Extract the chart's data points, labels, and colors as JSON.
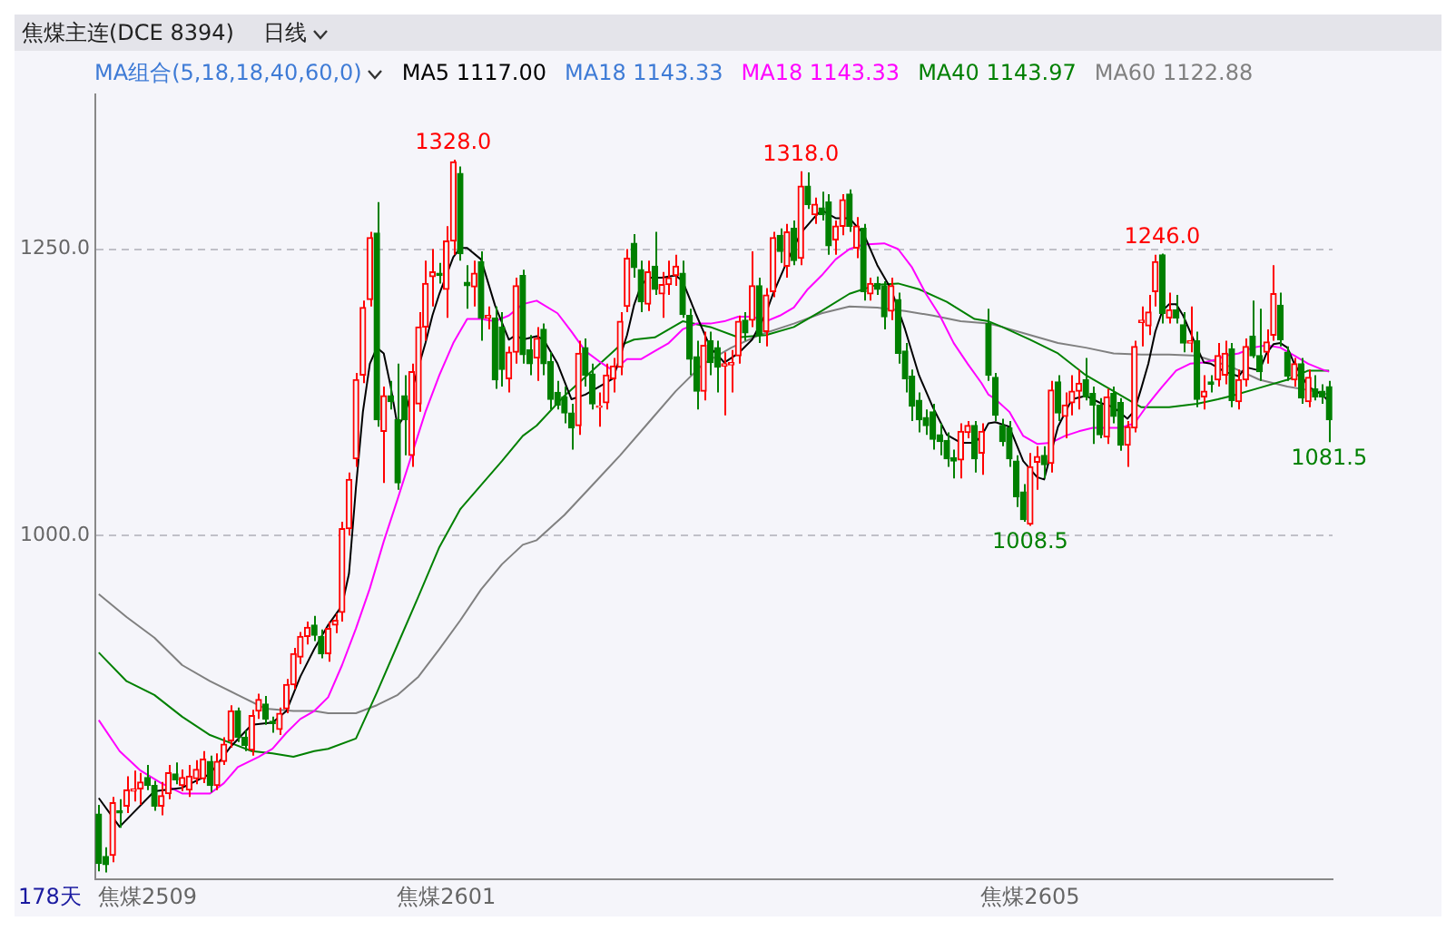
{
  "chart_data": {
    "type": "candlestick",
    "title": "焦煤主连(DCE 8394)",
    "subtitle": "日线",
    "categories": [
      null,
      null,
      null,
      null,
      null,
      null,
      null,
      "焦煤2509",
      null,
      null,
      null,
      null,
      null,
      null,
      null,
      null,
      null,
      null,
      null,
      null,
      null,
      null,
      null,
      null,
      null,
      null,
      null,
      null,
      null,
      null,
      null,
      null,
      null,
      null,
      null,
      null,
      null,
      null,
      null,
      null,
      null,
      null,
      null,
      null,
      null,
      null,
      null,
      null,
      null,
      null,
      "焦煤2601",
      null,
      null,
      null,
      null,
      null,
      null,
      null,
      null,
      null,
      null,
      null,
      null,
      null,
      null,
      null,
      null,
      null,
      null,
      null,
      null,
      null,
      null,
      null,
      null,
      null,
      null,
      null,
      null,
      null,
      null,
      null,
      null,
      null,
      null,
      null,
      null,
      null,
      null,
      null,
      null,
      null,
      null,
      null,
      null,
      null,
      null,
      null,
      null,
      null,
      null,
      null,
      null,
      null,
      null,
      null,
      null,
      null,
      null,
      null,
      null,
      null,
      null,
      null,
      null,
      null,
      null,
      null,
      null,
      null,
      null,
      null,
      null,
      null,
      null,
      null,
      null,
      null,
      null,
      null,
      null,
      null,
      null,
      null,
      "焦煤2605",
      null,
      null,
      null,
      null,
      null,
      null,
      null,
      null,
      null,
      null,
      null,
      null,
      null,
      null,
      null,
      null,
      null,
      null,
      null,
      null,
      null,
      null,
      null,
      null,
      null,
      null,
      null,
      null,
      null,
      null,
      null,
      null,
      null,
      null,
      null,
      null,
      null,
      null,
      null,
      null,
      null,
      null,
      null
    ],
    "ohlc": [
      [
        757,
        765,
        707,
        714
      ],
      [
        720,
        728,
        706,
        713
      ],
      [
        721,
        772,
        715,
        767
      ],
      [
        760,
        770,
        745,
        758
      ],
      [
        764,
        790,
        758,
        778
      ],
      [
        777,
        795,
        768,
        779
      ],
      [
        779,
        793,
        765,
        785
      ],
      [
        789,
        800,
        778,
        782
      ],
      [
        782,
        786,
        760,
        764
      ],
      [
        764,
        785,
        756,
        773
      ],
      [
        775,
        800,
        770,
        793
      ],
      [
        792,
        802,
        783,
        787
      ],
      [
        782,
        796,
        777,
        789
      ],
      [
        778,
        800,
        772,
        790
      ],
      [
        788,
        804,
        783,
        796
      ],
      [
        788,
        812,
        784,
        805
      ],
      [
        803,
        808,
        776,
        782
      ],
      [
        782,
        810,
        778,
        803
      ],
      [
        803,
        824,
        800,
        818
      ],
      [
        821,
        852,
        815,
        847
      ],
      [
        847,
        850,
        820,
        824
      ],
      [
        824,
        830,
        812,
        817
      ],
      [
        813,
        848,
        808,
        843
      ],
      [
        847,
        862,
        840,
        857
      ],
      [
        853,
        860,
        835,
        840
      ],
      [
        838,
        842,
        828,
        836
      ],
      [
        831,
        850,
        826,
        845
      ],
      [
        849,
        875,
        845,
        870
      ],
      [
        870,
        902,
        866,
        897
      ],
      [
        894,
        916,
        888,
        912
      ],
      [
        912,
        925,
        905,
        920
      ],
      [
        922,
        930,
        908,
        913
      ],
      [
        912,
        918,
        893,
        897
      ],
      [
        897,
        925,
        890,
        919
      ],
      [
        922,
        932,
        915,
        926
      ],
      [
        933,
        1012,
        925,
        1006
      ],
      [
        1006,
        1055,
        1000,
        1049
      ],
      [
        1067,
        1142,
        1060,
        1136
      ],
      [
        1140,
        1205,
        1133,
        1199
      ],
      [
        1206,
        1265,
        1200,
        1260
      ],
      [
        1264,
        1291,
        1095,
        1101
      ],
      [
        1091,
        1130,
        1046,
        1122
      ],
      [
        1122,
        1135,
        1110,
        1117
      ],
      [
        1101,
        1150,
        1040,
        1046
      ],
      [
        1122,
        1140,
        1070,
        1101
      ],
      [
        1070,
        1150,
        1060,
        1143
      ],
      [
        1115,
        1195,
        1108,
        1182
      ],
      [
        1182,
        1240,
        1170,
        1220
      ],
      [
        1226,
        1250,
        1200,
        1230
      ],
      [
        1229,
        1238,
        1220,
        1227
      ],
      [
        1215,
        1270,
        1190,
        1257
      ],
      [
        1257,
        1328,
        1245,
        1326
      ],
      [
        1316,
        1322,
        1240,
        1246
      ],
      [
        1221,
        1236,
        1198,
        1218
      ],
      [
        1217,
        1240,
        1200,
        1229
      ],
      [
        1239,
        1248,
        1170,
        1190
      ],
      [
        1190,
        1200,
        1180,
        1192
      ],
      [
        1190,
        1200,
        1128,
        1136
      ],
      [
        1182,
        1195,
        1130,
        1145
      ],
      [
        1137,
        1165,
        1125,
        1160
      ],
      [
        1160,
        1225,
        1150,
        1218
      ],
      [
        1227,
        1232,
        1150,
        1158
      ],
      [
        1162,
        1175,
        1140,
        1150
      ],
      [
        1155,
        1182,
        1135,
        1172
      ],
      [
        1180,
        1185,
        1140,
        1150
      ],
      [
        1152,
        1160,
        1110,
        1119
      ],
      [
        1125,
        1135,
        1110,
        1114
      ],
      [
        1121,
        1130,
        1098,
        1107
      ],
      [
        1107,
        1115,
        1075,
        1094
      ],
      [
        1096,
        1170,
        1088,
        1159
      ],
      [
        1164,
        1172,
        1130,
        1140
      ],
      [
        1141,
        1150,
        1110,
        1115
      ],
      [
        1112,
        1125,
        1095,
        1113
      ],
      [
        1116,
        1150,
        1110,
        1140
      ],
      [
        1137,
        1155,
        1125,
        1148
      ],
      [
        1147,
        1195,
        1140,
        1187
      ],
      [
        1200,
        1250,
        1195,
        1242
      ],
      [
        1255,
        1263,
        1225,
        1234
      ],
      [
        1232,
        1240,
        1195,
        1204
      ],
      [
        1202,
        1240,
        1196,
        1230
      ],
      [
        1235,
        1265,
        1210,
        1215
      ],
      [
        1211,
        1230,
        1190,
        1219
      ],
      [
        1219,
        1240,
        1210,
        1225
      ],
      [
        1227,
        1245,
        1218,
        1235
      ],
      [
        1229,
        1240,
        1190,
        1193
      ],
      [
        1192,
        1198,
        1140,
        1154
      ],
      [
        1156,
        1170,
        1110,
        1126
      ],
      [
        1126,
        1178,
        1118,
        1166
      ],
      [
        1170,
        1178,
        1140,
        1151
      ],
      [
        1164,
        1170,
        1125,
        1147
      ],
      [
        1148,
        1160,
        1105,
        1150
      ],
      [
        1149,
        1162,
        1125,
        1151
      ],
      [
        1157,
        1192,
        1150,
        1187
      ],
      [
        1188,
        1195,
        1170,
        1177
      ],
      [
        1188,
        1248,
        1182,
        1218
      ],
      [
        1218,
        1225,
        1168,
        1175
      ],
      [
        1178,
        1216,
        1165,
        1210
      ],
      [
        1213,
        1265,
        1208,
        1260
      ],
      [
        1262,
        1268,
        1238,
        1248
      ],
      [
        1235,
        1272,
        1225,
        1265
      ],
      [
        1268,
        1275,
        1236,
        1240
      ],
      [
        1242,
        1318,
        1236,
        1305
      ],
      [
        1305,
        1317,
        1285,
        1289
      ],
      [
        1280,
        1295,
        1272,
        1289
      ],
      [
        1286,
        1300,
        1275,
        1280
      ],
      [
        1291,
        1298,
        1245,
        1253
      ],
      [
        1258,
        1275,
        1245,
        1270
      ],
      [
        1270,
        1298,
        1262,
        1293
      ],
      [
        1298,
        1302,
        1265,
        1270
      ],
      [
        1251,
        1278,
        1242,
        1270
      ],
      [
        1268,
        1272,
        1205,
        1213
      ],
      [
        1211,
        1225,
        1205,
        1220
      ],
      [
        1220,
        1226,
        1210,
        1215
      ],
      [
        1218,
        1222,
        1180,
        1191
      ],
      [
        1196,
        1225,
        1188,
        1218
      ],
      [
        1206,
        1212,
        1150,
        1159
      ],
      [
        1161,
        1168,
        1125,
        1137
      ],
      [
        1139,
        1145,
        1100,
        1113
      ],
      [
        1118,
        1125,
        1090,
        1101
      ],
      [
        1103,
        1110,
        1088,
        1096
      ],
      [
        1108,
        1115,
        1075,
        1084
      ],
      [
        1088,
        1098,
        1070,
        1082
      ],
      [
        1083,
        1090,
        1060,
        1067
      ],
      [
        1068,
        1075,
        1050,
        1065
      ],
      [
        1066,
        1098,
        1050,
        1091
      ],
      [
        1090,
        1100,
        1085,
        1096
      ],
      [
        1096,
        1100,
        1055,
        1067
      ],
      [
        1072,
        1098,
        1053,
        1091
      ],
      [
        1185,
        1198,
        1135,
        1140
      ],
      [
        1138,
        1142,
        1100,
        1105
      ],
      [
        1096,
        1102,
        1078,
        1082
      ],
      [
        1094,
        1100,
        1060,
        1067
      ],
      [
        1065,
        1070,
        1025,
        1034
      ],
      [
        1038,
        1045,
        1012,
        1014
      ],
      [
        1010,
        1072,
        1008.5,
        1060
      ],
      [
        1064,
        1078,
        1040,
        1069
      ],
      [
        1070,
        1078,
        1050,
        1062
      ],
      [
        1063,
        1135,
        1055,
        1127
      ],
      [
        1134,
        1140,
        1100,
        1107
      ],
      [
        1104,
        1125,
        1085,
        1114
      ],
      [
        1116,
        1140,
        1105,
        1126
      ],
      [
        1126,
        1145,
        1110,
        1133
      ],
      [
        1136,
        1155,
        1118,
        1121
      ],
      [
        1124,
        1130,
        1080,
        1114
      ],
      [
        1114,
        1120,
        1085,
        1088
      ],
      [
        1086,
        1128,
        1080,
        1121
      ],
      [
        1124,
        1130,
        1098,
        1104
      ],
      [
        1116,
        1120,
        1074,
        1079
      ],
      [
        1079,
        1100,
        1060,
        1095
      ],
      [
        1094,
        1170,
        1090,
        1165
      ],
      [
        1186,
        1200,
        1165,
        1188
      ],
      [
        1183,
        1210,
        1175,
        1195
      ],
      [
        1213,
        1245,
        1200,
        1239
      ],
      [
        1245,
        1246,
        1185,
        1194
      ],
      [
        1190,
        1212,
        1185,
        1197
      ],
      [
        1197,
        1210,
        1185,
        1190
      ],
      [
        1184,
        1195,
        1160,
        1168
      ],
      [
        1168,
        1200,
        1160,
        1170
      ],
      [
        1170,
        1178,
        1112,
        1119
      ],
      [
        1121,
        1140,
        1110,
        1126
      ],
      [
        1134,
        1140,
        1125,
        1132
      ],
      [
        1136,
        1168,
        1130,
        1157
      ],
      [
        1140,
        1170,
        1132,
        1159
      ],
      [
        1163,
        1168,
        1112,
        1118
      ],
      [
        1117,
        1145,
        1110,
        1136
      ],
      [
        1136,
        1172,
        1130,
        1165
      ],
      [
        1174,
        1205,
        1155,
        1157
      ],
      [
        1157,
        1198,
        1135,
        1143
      ],
      [
        1160,
        1180,
        1150,
        1169
      ],
      [
        1175,
        1236,
        1170,
        1211
      ],
      [
        1201,
        1212,
        1165,
        1171
      ],
      [
        1160,
        1165,
        1135,
        1139
      ],
      [
        1136,
        1155,
        1130,
        1150
      ],
      [
        1150,
        1155,
        1115,
        1120
      ],
      [
        1117,
        1145,
        1112,
        1138
      ],
      [
        1128,
        1140,
        1118,
        1121
      ],
      [
        1126,
        1132,
        1115,
        1121
      ],
      [
        1130,
        1135,
        1081.5,
        1101
      ]
    ],
    "series": [
      {
        "name": "MA5 1117.00",
        "type": "line",
        "color": "#000000",
        "values": [
          771,
          null,
          null,
          746,
          null,
          null,
          null,
          null,
          777,
          null,
          null,
          null,
          780,
          null,
          null,
          null,
          792,
          null,
          null,
          816,
          null,
          null,
          835,
          null,
          null,
          837,
          null,
          847,
          null,
          877,
          null,
          901,
          null,
          922,
          null,
          939,
          967,
          1042,
          1108,
          1150,
          1164,
          1159,
          1130,
          1095,
          1105,
          null,
          null,
          1168,
          1192,
          1211,
          null,
          1243,
          1251,
          1251,
          null,
          1241,
          null,
          1201,
          null,
          1171,
          1175,
          1171,
          null,
          1174,
          1171,
          null,
          1150,
          null,
          1119,
          null,
          1123,
          null,
          1130,
          null,
          1137,
          null,
          1175,
          1201,
          1218,
          1225,
          null,
          1225,
          null,
          1227,
          1222,
          null,
          1192,
          null,
          1164,
          null,
          1151,
          null,
          1159,
          null,
          1171,
          null,
          1194,
          1211,
          null,
          1239,
          null,
          1264,
          null,
          1278,
          1284,
          null,
          1277,
          null,
          1277,
          1270,
          1264,
          null,
          1236,
          null,
          1215,
          null,
          1180,
          null,
          1140,
          null,
          1112,
          null,
          1088,
          null,
          1081,
          null,
          1081,
          1087,
          1098,
          1099,
          null,
          1095,
          null,
          1065,
          null,
          1051,
          1049,
          null,
          1095,
          null,
          1119,
          null,
          1122,
          null,
          1116,
          null,
          1112,
          null,
          1102,
          1109,
          1129,
          1150,
          1178,
          1196,
          1202,
          1202,
          1192,
          1178,
          1164,
          1151,
          1150,
          null,
          1143,
          null,
          1139,
          1147,
          null,
          1144,
          1159,
          1167,
          1168,
          1164,
          1150,
          null,
          1130,
          null,
          1123,
          1117
        ]
      },
      {
        "name": "MA18 1143.33",
        "type": "line",
        "color": "#ff00ff",
        "values": [
          839,
          null,
          null,
          812,
          null,
          null,
          795,
          null,
          null,
          784,
          null,
          null,
          775,
          null,
          null,
          null,
          775,
          null,
          784,
          null,
          798,
          null,
          null,
          807,
          null,
          814,
          null,
          828,
          null,
          840,
          null,
          847,
          null,
          859,
          null,
          887,
          null,
          919,
          null,
          954,
          null,
          995,
          null,
          1032,
          null,
          1070,
          null,
          1108,
          null,
          1140,
          null,
          1168,
          null,
          1189,
          null,
          1189,
          null,
          1187,
          null,
          1192,
          null,
          1202,
          null,
          1205,
          null,
          null,
          1194,
          null,
          1178,
          null,
          1161,
          null,
          1152,
          null,
          1144,
          null,
          1154,
          null,
          1154,
          null,
          1161,
          null,
          1168,
          null,
          1180,
          null,
          1185,
          null,
          1185,
          null,
          1187,
          null,
          1191,
          null,
          1191,
          null,
          1187,
          null,
          1192,
          null,
          1199,
          null,
          1215,
          null,
          1227,
          null,
          1241,
          null,
          1250,
          null,
          1254,
          null,
          null,
          1255,
          null,
          1250,
          null,
          1234,
          null,
          1211,
          null,
          1192,
          null,
          1168,
          null,
          1150,
          null,
          1133,
          1123,
          1119,
          null,
          1108,
          null,
          1087,
          null,
          1080,
          null,
          1081,
          null,
          1087,
          null,
          1091,
          null,
          1094,
          null,
          1094,
          null,
          1094,
          null,
          1098,
          null,
          1115,
          null,
          1130,
          null,
          1144,
          null,
          1150,
          null,
          1151,
          null,
          1154,
          1157,
          null,
          1159,
          null,
          1164,
          null,
          1166,
          null,
          1164,
          null,
          1157,
          null,
          1150,
          null,
          1145,
          1143
        ]
      },
      {
        "name": "MA40 1143.97",
        "type": "line",
        "color": "#008000",
        "values": [
          898,
          null,
          null,
          null,
          873,
          null,
          null,
          null,
          861,
          null,
          null,
          null,
          842,
          null,
          null,
          null,
          826,
          null,
          null,
          819,
          null,
          null,
          812,
          null,
          null,
          810,
          null,
          null,
          807,
          null,
          null,
          812,
          null,
          814,
          null,
          null,
          null,
          823,
          null,
          null,
          863,
          null,
          null,
          905,
          null,
          null,
          947,
          null,
          null,
          990,
          null,
          null,
          1023,
          null,
          null,
          1044,
          null,
          null,
          1065,
          null,
          null,
          1087,
          null,
          1096,
          null,
          null,
          null,
          1122,
          null,
          null,
          null,
          1144,
          null,
          null,
          null,
          1166,
          null,
          1171,
          null,
          null,
          1173,
          null,
          null,
          null,
          1187,
          null,
          null,
          null,
          1182,
          null,
          null,
          null,
          1173,
          null,
          null,
          null,
          1175,
          null,
          null,
          null,
          1182,
          null,
          null,
          null,
          1196,
          null,
          null,
          null,
          1211,
          null,
          null,
          null,
          1219,
          null,
          null,
          1220,
          null,
          null,
          1215,
          null,
          null,
          null,
          1204,
          null,
          null,
          null,
          1189,
          null,
          1187,
          null,
          1182,
          null,
          null,
          null,
          1171,
          null,
          null,
          null,
          1159,
          null,
          null,
          null,
          1140,
          null,
          null,
          null,
          1126,
          null,
          null,
          null,
          1112,
          null,
          null,
          null,
          1112,
          null,
          null,
          null,
          1115,
          null,
          null,
          1119,
          null,
          1122,
          null,
          null,
          null,
          1129,
          null,
          null,
          null,
          1136,
          null,
          null,
          1144,
          null,
          null,
          1144
        ]
      },
      {
        "name": "MA60 1122.88",
        "type": "line",
        "color": "#808080",
        "values": [
          949,
          null,
          null,
          null,
          929,
          null,
          null,
          null,
          911,
          null,
          null,
          null,
          887,
          null,
          null,
          null,
          873,
          null,
          null,
          null,
          861,
          null,
          null,
          null,
          849,
          null,
          null,
          null,
          847,
          null,
          null,
          847,
          null,
          845,
          null,
          null,
          null,
          845,
          null,
          null,
          852,
          null,
          null,
          861,
          null,
          null,
          877,
          null,
          null,
          901,
          null,
          null,
          926,
          null,
          null,
          953,
          null,
          null,
          975,
          null,
          null,
          992,
          null,
          996,
          null,
          null,
          null,
          1018,
          null,
          null,
          null,
          1044,
          null,
          null,
          null,
          1070,
          null,
          null,
          null,
          1098,
          null,
          null,
          null,
          1126,
          null,
          null,
          null,
          1150,
          null,
          null,
          null,
          1164,
          null,
          null,
          null,
          1175,
          null,
          null,
          null,
          null,
          1185,
          null,
          null,
          null,
          1194,
          null,
          null,
          null,
          1200,
          null,
          null,
          null,
          1199,
          null,
          null,
          null,
          1196,
          null,
          null,
          null,
          1192,
          null,
          null,
          null,
          1187,
          null,
          null,
          null,
          1185,
          null,
          1182,
          null,
          null,
          null,
          1175,
          null,
          null,
          null,
          1168,
          null,
          null,
          null,
          1164,
          null,
          null,
          null,
          1159,
          null,
          null,
          null,
          1158,
          null,
          null,
          null,
          1158,
          null,
          null,
          null,
          1157,
          null,
          null,
          1151,
          null,
          1147,
          null,
          null,
          null,
          1136,
          null,
          null,
          null,
          1130,
          null,
          null,
          1127,
          null,
          null,
          1123
        ]
      }
    ],
    "ylim": [
      700,
      1385
    ],
    "yticks": [
      {
        "value": 1000,
        "label": "1000.0"
      },
      {
        "value": 1250,
        "label": "1250.0"
      }
    ],
    "grid": "y",
    "legend": "top",
    "marker": "none",
    "annotations": [
      "MA组合(5,18,18,40,60,0)",
      "MA18 1143.33",
      "178天",
      {
        "text": "1328.0",
        "y": 1328
      },
      {
        "text": "1318.0",
        "y": 1318
      },
      {
        "text": "1246.0",
        "y": 1246
      },
      {
        "text": "1008.5",
        "y": 1008.5
      },
      {
        "text": "1081.5",
        "y": 1081.5
      }
    ]
  }
}
